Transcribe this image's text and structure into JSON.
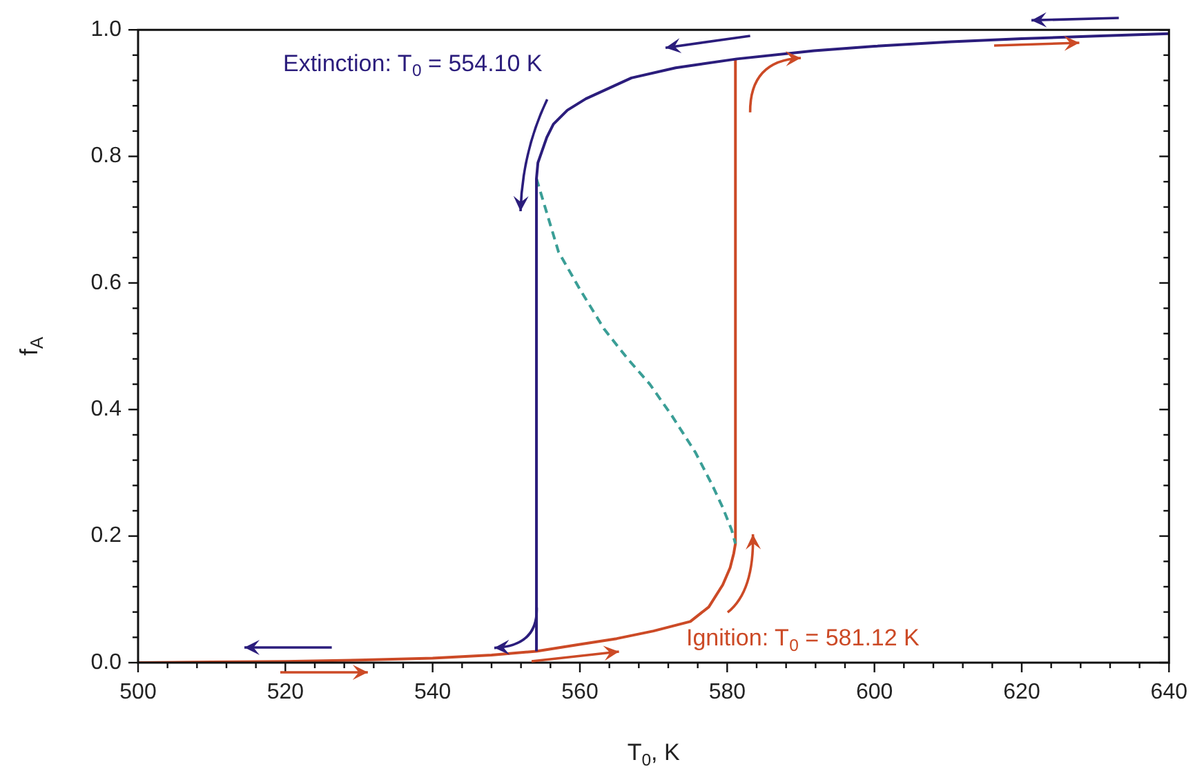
{
  "chart_data": {
    "type": "line",
    "xlabel": "T$_{0}$, K",
    "ylabel": "f$_{A}$",
    "xlim": [
      500,
      640
    ],
    "ylim": [
      0,
      1
    ],
    "xticks": [
      500,
      {
        "value": 504,
        "label": null
      },
      {
        "value": 508,
        "label": null
      },
      {
        "value": 512,
        "label": null
      },
      {
        "value": 516,
        "label": null
      },
      520,
      {
        "value": 524,
        "label": null
      },
      {
        "value": 528,
        "label": null
      },
      {
        "value": 532,
        "label": null
      },
      {
        "value": 536,
        "label": null
      },
      540,
      {
        "value": 544,
        "label": null
      },
      {
        "value": 548,
        "label": null
      },
      {
        "value": 552,
        "label": null
      },
      {
        "value": 556,
        "label": null
      },
      560,
      {
        "value": 564,
        "label": null
      },
      {
        "value": 568,
        "label": null
      },
      {
        "value": 572,
        "label": null
      },
      {
        "value": 576,
        "label": null
      },
      580,
      {
        "value": 584,
        "label": null
      },
      {
        "value": 588,
        "label": null
      },
      {
        "value": 592,
        "label": null
      },
      {
        "value": 596,
        "label": null
      },
      600,
      {
        "value": 604,
        "label": null
      },
      {
        "value": 608,
        "label": null
      },
      {
        "value": 612,
        "label": null
      },
      {
        "value": 616,
        "label": null
      },
      620,
      {
        "value": 624,
        "label": null
      },
      {
        "value": 628,
        "label": null
      },
      {
        "value": 632,
        "label": null
      },
      {
        "value": 636,
        "label": null
      },
      640
    ],
    "yticks": [
      {
        "value": 0,
        "label": "0.0"
      },
      {
        "value": 0.04,
        "label": null
      },
      {
        "value": 0.08,
        "label": null
      },
      {
        "value": 0.12,
        "label": null
      },
      {
        "value": 0.16,
        "label": null
      },
      {
        "value": 0.2,
        "label": "0.2"
      },
      {
        "value": 0.24,
        "label": null
      },
      {
        "value": 0.28,
        "label": null
      },
      {
        "value": 0.32,
        "label": null
      },
      {
        "value": 0.36,
        "label": null
      },
      {
        "value": 0.4,
        "label": "0.4"
      },
      {
        "value": 0.44,
        "label": null
      },
      {
        "value": 0.48,
        "label": null
      },
      {
        "value": 0.52,
        "label": null
      },
      {
        "value": 0.56,
        "label": null
      },
      {
        "value": 0.6,
        "label": "0.6"
      },
      {
        "value": 0.64,
        "label": null
      },
      {
        "value": 0.68,
        "label": null
      },
      {
        "value": 0.72,
        "label": null
      },
      {
        "value": 0.76,
        "label": null
      },
      {
        "value": 0.8,
        "label": "0.8"
      },
      {
        "value": 0.84,
        "label": null
      },
      {
        "value": 0.88,
        "label": null
      },
      {
        "value": 0.92,
        "label": null
      },
      {
        "value": 0.96,
        "label": null
      },
      {
        "value": 1,
        "label": "1.0"
      }
    ],
    "annotations": [
      "Extinction: T$_{0}$ = 554.10 K",
      "Ignition: T$_{0}$ = 581.12 K"
    ],
    "series": [
      {
        "color": "#2b1d7c",
        "x": [
          554.1,
          554.1,
          554.3,
          554.6,
          555.5,
          556.4,
          558.3,
          560.8,
          567,
          573,
          581.3,
          591.8,
          600,
          610.4,
          620,
          630,
          640
        ],
        "values": [
          0.018,
          0.765,
          0.79,
          0.8,
          0.83,
          0.851,
          0.873,
          0.891,
          0.924,
          0.94,
          0.954,
          0.967,
          0.974,
          0.981,
          0.986,
          0.99,
          0.994
        ]
      },
      {
        "color": "#3a9e96",
        "line_style": "dashed",
        "x": [
          554.1,
          557.1,
          560,
          563.3,
          566.5,
          569.5,
          572.5,
          575.7,
          578,
          579.4,
          580.6,
          581.12
        ],
        "values": [
          0.765,
          0.649,
          0.59,
          0.527,
          0.48,
          0.44,
          0.39,
          0.332,
          0.28,
          0.245,
          0.21,
          0.188
        ]
      },
      {
        "color": "#cc4a26",
        "x": [
          500,
          510,
          520,
          530,
          540,
          548,
          554.1,
          560,
          565,
          570,
          575,
          577.5,
          579.4,
          580.4,
          580.9,
          581.12,
          581.12
        ],
        "values": [
          0,
          0.001,
          0.002,
          0.004,
          0.007,
          0.012,
          0.018,
          0.029,
          0.038,
          0.05,
          0.065,
          0.088,
          0.123,
          0.15,
          0.173,
          0.188,
          0.955
        ]
      }
    ]
  }
}
